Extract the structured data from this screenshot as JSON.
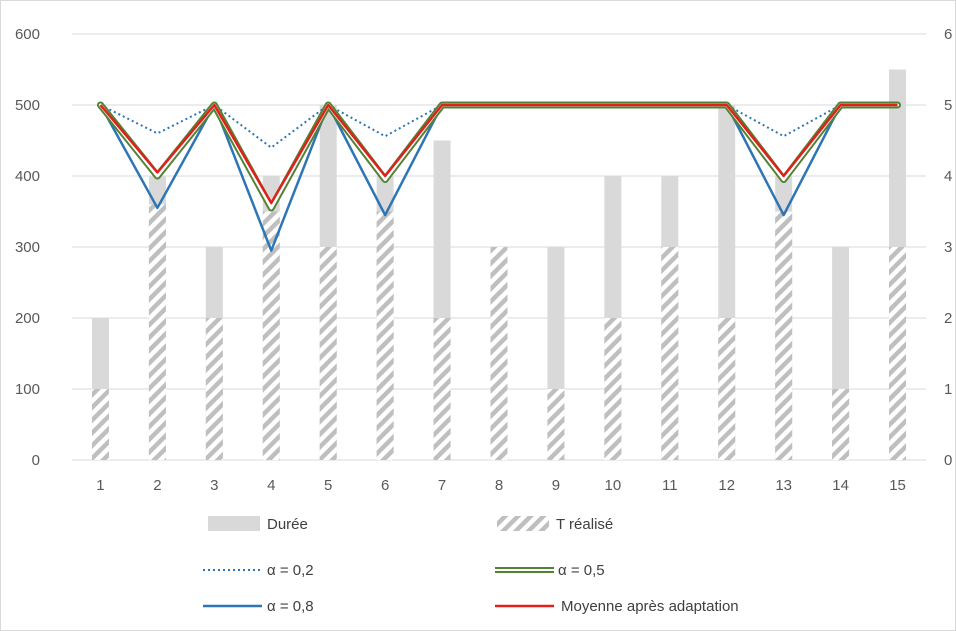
{
  "chart_data": {
    "type": "bar",
    "categories": [
      "1",
      "2",
      "3",
      "4",
      "5",
      "6",
      "7",
      "8",
      "9",
      "10",
      "11",
      "12",
      "13",
      "14",
      "15"
    ],
    "y_left": {
      "min": 0,
      "max": 600,
      "ticks": [
        "0",
        "100",
        "200",
        "300",
        "400",
        "500",
        "600"
      ]
    },
    "y_right": {
      "min": 0,
      "max": 6,
      "ticks": [
        "0",
        "1",
        "2",
        "3",
        "4",
        "5",
        "6"
      ]
    },
    "bar_series": [
      {
        "name": "Durée",
        "color": "#d9d9d9",
        "values": [
          200,
          400,
          300,
          400,
          500,
          400,
          450,
          300,
          300,
          400,
          400,
          500,
          400,
          300,
          550
        ]
      },
      {
        "name": "T réalisé",
        "color": "#bfbfbf",
        "pattern": "diagonal-hatch",
        "values": [
          100,
          360,
          200,
          350,
          300,
          350,
          200,
          300,
          100,
          200,
          300,
          200,
          350,
          100,
          300
        ]
      }
    ],
    "line_axis": "right",
    "line_series": [
      {
        "name": "α = 0,2",
        "color": "#2e75b6",
        "style": "dotted",
        "values": [
          5,
          4.6,
          5,
          4.4,
          5,
          4.56,
          5,
          5,
          5,
          5,
          5,
          5,
          4.56,
          5,
          5
        ]
      },
      {
        "name": "α = 0,5",
        "color": "#548235",
        "style": "double",
        "values": [
          5,
          4.0,
          5,
          3.55,
          5,
          3.95,
          5,
          5,
          5,
          5,
          5,
          5,
          3.95,
          5,
          5
        ]
      },
      {
        "name": "α = 0,8",
        "color": "#2e75b6",
        "style": "solid",
        "values": [
          5,
          3.55,
          5,
          2.95,
          5,
          3.45,
          5,
          5,
          5,
          5,
          5,
          5,
          3.45,
          5,
          5
        ]
      },
      {
        "name": "Moyenne après adaptation",
        "color": "#e0201b",
        "style": "solid",
        "values": [
          5,
          4.05,
          5,
          3.62,
          5,
          4.0,
          5,
          5,
          5,
          5,
          5,
          5,
          4.0,
          5,
          5
        ]
      }
    ],
    "legend_position": "bottom",
    "grid": true
  },
  "legend": {
    "duree": "Durée",
    "t_realise": "T réalisé",
    "alpha_02": "α = 0,2",
    "alpha_05": "α = 0,5",
    "alpha_08": "α = 0,8",
    "moyenne": "Moyenne après adaptation"
  }
}
